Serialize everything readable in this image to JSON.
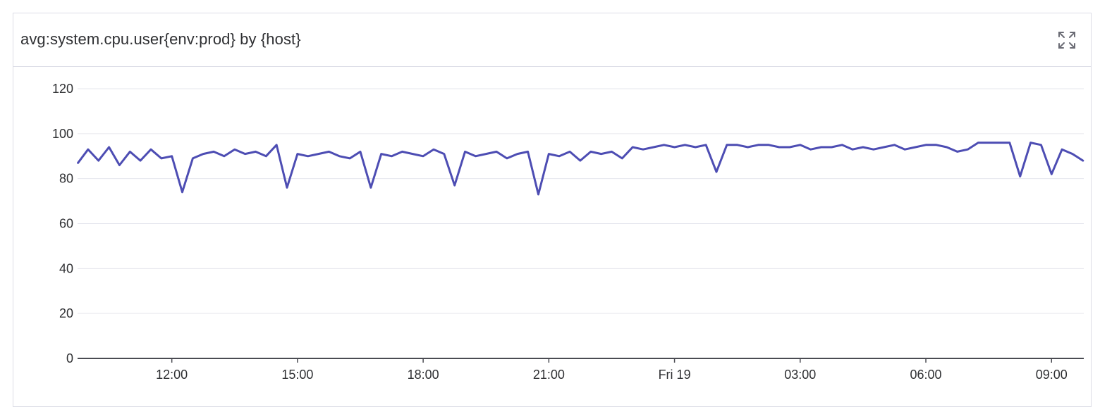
{
  "widget": {
    "title": "avg:system.cpu.user{env:prod} by {host}",
    "expand_icon": "expand-icon"
  },
  "colors": {
    "series": "#4d4db3",
    "grid": "#e6e7ee",
    "axis": "#4a4b52",
    "border": "#dcdde6",
    "text": "#2f3033"
  },
  "chart_data": {
    "type": "line",
    "title": "avg:system.cpu.user{env:prod} by {host}",
    "xlabel": "",
    "ylabel": "",
    "ylim": [
      0,
      120
    ],
    "yticks": [
      0,
      20,
      40,
      60,
      80,
      100,
      120
    ],
    "y_tick_labels": [
      "0",
      "20",
      "40",
      "60",
      "80",
      "100",
      "120"
    ],
    "xlim": [
      "09:45",
      "09:46 (+1 day)"
    ],
    "x_tick_labels": [
      "12:00",
      "15:00",
      "18:00",
      "21:00",
      "Fri 19",
      "03:00",
      "06:00",
      "09:00"
    ],
    "x_tick_hours": [
      12,
      15,
      18,
      21,
      24,
      27,
      30,
      33
    ],
    "grid": true,
    "legend": "none",
    "series": [
      {
        "x_hours": [
          9.76,
          10.0,
          10.25,
          10.5,
          10.75,
          11.0,
          11.25,
          11.5,
          11.75,
          12.0,
          12.25,
          12.5,
          12.75,
          13.0,
          13.25,
          13.5,
          13.75,
          14.0,
          14.25,
          14.5,
          14.75,
          15.0,
          15.25,
          15.5,
          15.75,
          16.0,
          16.25,
          16.5,
          16.75,
          17.0,
          17.25,
          17.5,
          17.75,
          18.0,
          18.25,
          18.5,
          18.75,
          19.0,
          19.25,
          19.5,
          19.75,
          20.0,
          20.25,
          20.5,
          20.75,
          21.0,
          21.25,
          21.5,
          21.75,
          22.0,
          22.25,
          22.5,
          22.75,
          23.0,
          23.25,
          23.5,
          23.75,
          24.0,
          24.25,
          24.5,
          24.75,
          25.0,
          25.25,
          25.5,
          25.75,
          26.0,
          26.25,
          26.5,
          26.75,
          27.0,
          27.25,
          27.5,
          27.75,
          28.0,
          28.25,
          28.5,
          28.75,
          29.0,
          29.25,
          29.5,
          29.75,
          30.0,
          30.25,
          30.5,
          30.75,
          31.0,
          31.25,
          31.5,
          31.75,
          32.0,
          32.25,
          32.5,
          32.75,
          33.0,
          33.25,
          33.5,
          33.75
        ],
        "values": [
          87,
          93,
          88,
          94,
          86,
          92,
          88,
          93,
          89,
          90,
          74,
          89,
          91,
          92,
          90,
          93,
          91,
          92,
          90,
          95,
          76,
          91,
          90,
          91,
          92,
          90,
          89,
          92,
          76,
          91,
          90,
          92,
          91,
          90,
          93,
          91,
          77,
          92,
          90,
          91,
          92,
          89,
          91,
          92,
          73,
          91,
          90,
          92,
          88,
          92,
          91,
          92,
          89,
          94,
          93,
          94,
          95,
          94,
          95,
          94,
          95,
          83,
          95,
          95,
          94,
          95,
          95,
          94,
          94,
          95,
          93,
          94,
          94,
          95,
          93,
          94,
          93,
          94,
          95,
          93,
          94,
          95,
          95,
          94,
          92,
          93,
          96,
          96,
          96,
          96,
          81,
          96,
          95,
          82,
          93,
          91,
          88
        ]
      }
    ]
  }
}
